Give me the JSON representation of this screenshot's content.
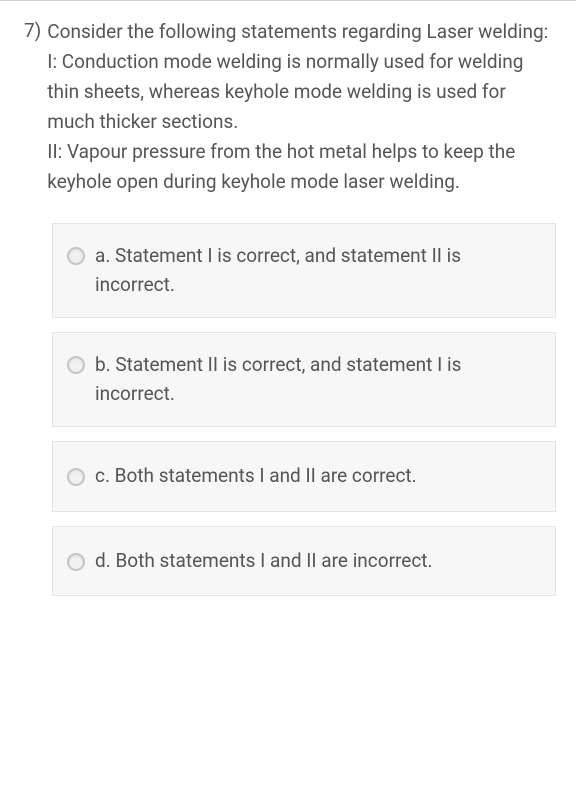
{
  "question": {
    "number": "7)",
    "prompt": "Consider the following statements regarding Laser welding:",
    "statement_1": "I: Conduction mode welding is normally used for welding thin sheets, whereas keyhole mode welding is used for much thicker sections.",
    "statement_2": "II: Vapour pressure from the hot metal helps to keep the keyhole open during keyhole mode laser welding."
  },
  "options": [
    {
      "label": "a. Statement I is correct, and statement II is incorrect."
    },
    {
      "label": "b. Statement II is correct, and statement I is incorrect."
    },
    {
      "label": "c. Both statements I and II are correct."
    },
    {
      "label": "d. Both statements I and II are incorrect."
    }
  ],
  "styles": {
    "text_color": "#555555",
    "option_bg": "#f7f7f7",
    "option_border": "#e5e5e5",
    "radio_border": "#c5c5c5",
    "divider_color": "#d0d0d0",
    "font_size": 19
  }
}
